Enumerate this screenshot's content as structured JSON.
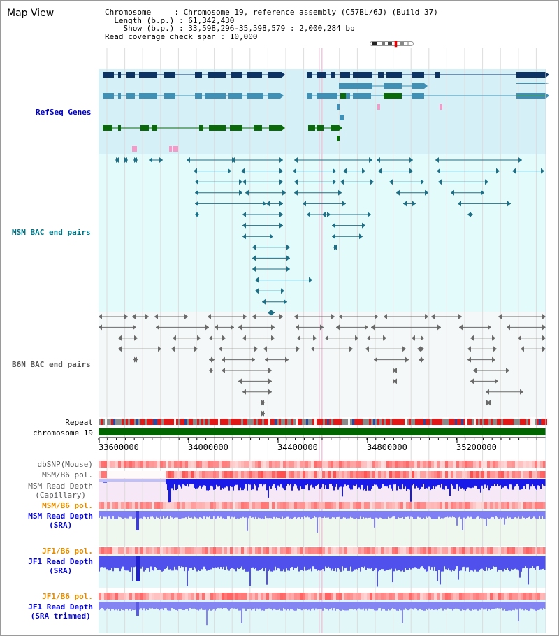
{
  "title": "Map View",
  "info": {
    "chromosome": "Chromosome     : Chromosome 19, reference assembly (C57BL/6J) (Build 37)",
    "length": "  Length (b.p.) : 61,342,430",
    "show": "    Show (b.p.) : 33,598,296-35,598,579 : 2,000,284 bp",
    "coverage": "Read coverage check span : 10,000"
  },
  "tracks": {
    "refseq": "RefSeq Genes",
    "msm_bac": "MSM BAC end pairs",
    "b6n_bac": "B6N BAC end pairs",
    "repeat": "Repeat",
    "chromosome": "chromosome 19",
    "dbsnp": "dbSNP(Mouse)",
    "msm_b6_pol_1": "MSM/B6 pol.",
    "msm_read_depth_cap_1": "MSM Read Depth",
    "msm_read_depth_cap_2": "(Capillary)",
    "msm_b6_pol_2": "MSM/B6 pol.",
    "msm_read_depth_sra_1": "MSM Read Depth",
    "msm_read_depth_sra_2": "(SRA)",
    "jf1_b6_pol_1": "JF1/B6 pol.",
    "jf1_read_depth_sra_1": "JF1 Read Depth",
    "jf1_read_depth_sra_2": "(SRA)",
    "jf1_b6_pol_2": "JF1/B6 pol.",
    "jf1_read_depth_trim_1": "JF1 Read Depth",
    "jf1_read_depth_trim_2": "(SRA trimmed)"
  },
  "axis": {
    "ticks": [
      "33600000",
      "34000000",
      "34400000",
      "34800000",
      "35200000"
    ]
  },
  "colors": {
    "refseq_bg": "#d6f0f8",
    "msm_bg": "#e4fbfb",
    "b6n_bg": "#f5f8f8",
    "gene_dark": "#0c3364",
    "gene_mid": "#3f90b4",
    "gene_green": "#0a6a0a",
    "msm_line": "#1f6e84",
    "b6n_line": "#6a6a6a",
    "label_blue": "#0000c8",
    "label_teal": "#007080",
    "label_grey": "#555555",
    "label_orange": "#e08a00",
    "chrom_green": "#006600"
  }
}
